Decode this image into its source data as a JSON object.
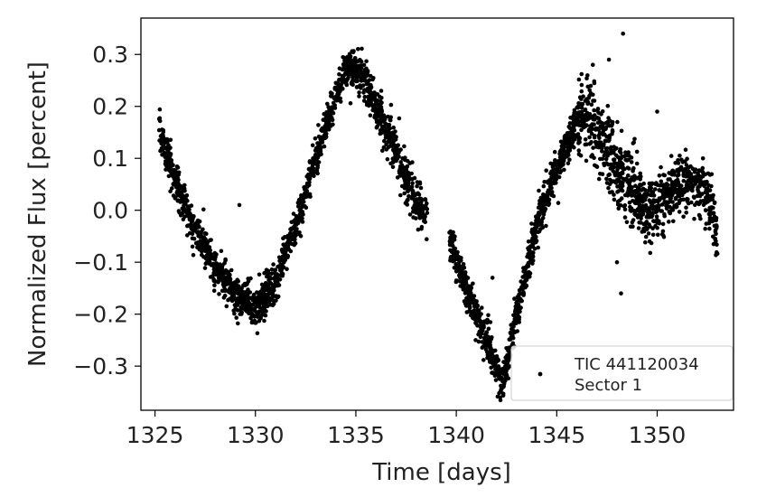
{
  "chart_data": {
    "type": "scatter",
    "title": "",
    "xlabel": "Time [days]",
    "ylabel": "Normalized Flux [percent]",
    "xlim": [
      1324.3,
      1353.8
    ],
    "ylim": [
      -0.385,
      0.37
    ],
    "x_ticks": [
      1325,
      1330,
      1335,
      1340,
      1345,
      1350
    ],
    "y_ticks": [
      -0.3,
      -0.2,
      -0.1,
      0.0,
      0.1,
      0.2,
      0.3
    ],
    "x_tick_labels": [
      "1325",
      "1330",
      "1335",
      "1340",
      "1345",
      "1350"
    ],
    "y_tick_labels": [
      "−0.3",
      "−0.2",
      "−0.1",
      "0.0",
      "0.1",
      "0.2",
      "0.3"
    ],
    "grid": false,
    "legend": {
      "position": "lower-right",
      "entries": [
        "TIC 441120034",
        "Sector 1"
      ]
    },
    "marker_color": "#000000",
    "series": [
      {
        "name": "TIC 441120034 Sector 1",
        "trend_x": [
          1325.2,
          1326.0,
          1327.0,
          1328.0,
          1329.0,
          1330.0,
          1331.0,
          1332.0,
          1333.0,
          1334.0,
          1334.6,
          1335.5,
          1336.5,
          1337.5,
          1338.5,
          1339.7,
          1340.5,
          1341.5,
          1342.3,
          1343.0,
          1344.0,
          1345.0,
          1346.0,
          1346.5,
          1347.5,
          1348.5,
          1349.5,
          1350.5,
          1351.5,
          1352.5,
          1353.0
        ],
        "trend_y": [
          0.15,
          0.06,
          -0.04,
          -0.11,
          -0.16,
          -0.19,
          -0.14,
          -0.03,
          0.1,
          0.22,
          0.28,
          0.25,
          0.16,
          0.06,
          -0.01,
          -0.06,
          -0.15,
          -0.25,
          -0.34,
          -0.2,
          -0.03,
          0.08,
          0.17,
          0.19,
          0.12,
          0.05,
          0.0,
          0.03,
          0.06,
          0.03,
          -0.04
        ],
        "outliers": [
          {
            "x": 1329.2,
            "y": 0.01
          },
          {
            "x": 1348.3,
            "y": 0.34
          },
          {
            "x": 1348.2,
            "y": -0.16
          },
          {
            "x": 1347.6,
            "y": 0.29
          },
          {
            "x": 1346.8,
            "y": 0.28
          },
          {
            "x": 1350.0,
            "y": 0.19
          },
          {
            "x": 1341.8,
            "y": -0.13
          },
          {
            "x": 1348.0,
            "y": -0.1
          }
        ]
      }
    ]
  }
}
